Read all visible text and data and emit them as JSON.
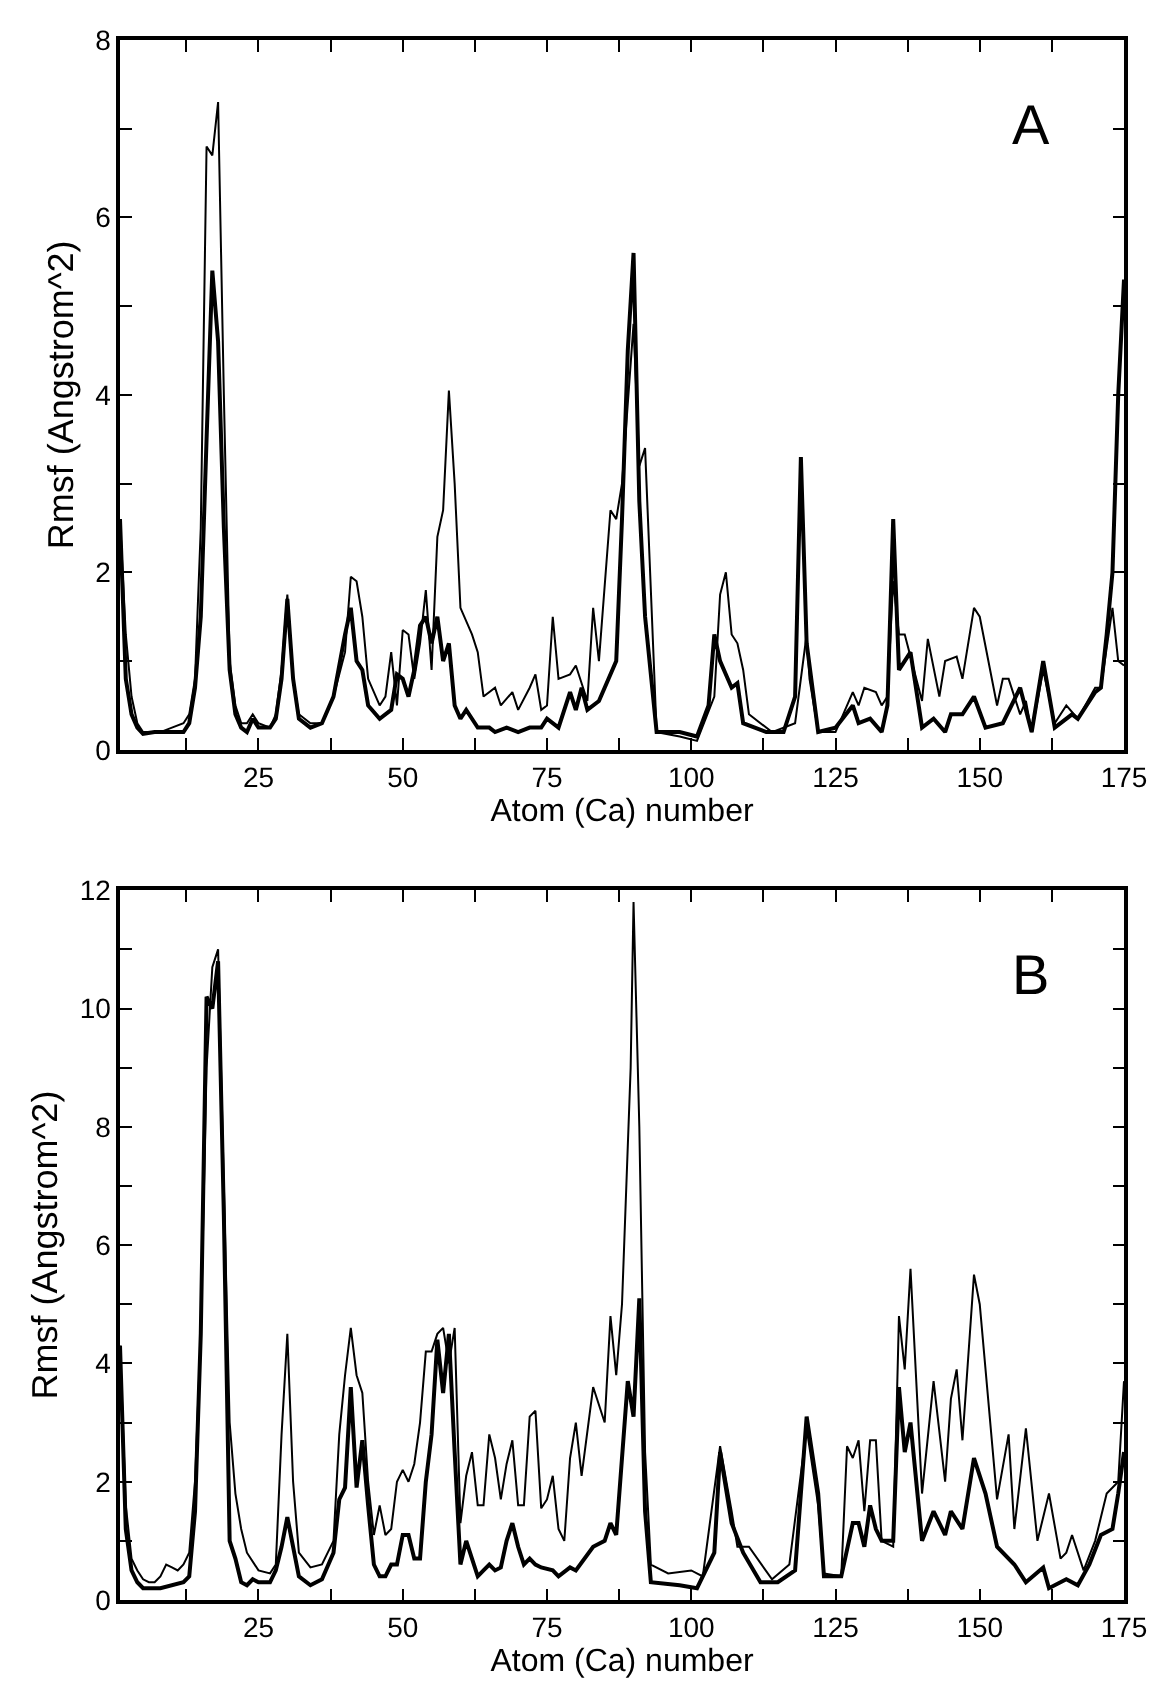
{
  "chart_data": [
    {
      "type": "line",
      "xlabel": "Atom (Ca) number",
      "ylabel": "Rmsf (Angstrom^2)",
      "annotations": [
        "A"
      ],
      "xlim": [
        1,
        175
      ],
      "xticks": [
        {
          "value": 12.5,
          "label": null
        },
        25,
        {
          "value": 37.5,
          "label": null
        },
        50,
        {
          "value": 62.5,
          "label": null
        },
        75,
        {
          "value": 87.5,
          "label": null
        },
        100,
        {
          "value": 112.5,
          "label": null
        },
        125,
        {
          "value": 137.5,
          "label": null
        },
        150,
        {
          "value": 162.5,
          "label": null
        },
        175
      ],
      "ylim": [
        0,
        8
      ],
      "yticks": [
        0,
        {
          "value": 1,
          "label": null
        },
        2,
        {
          "value": 3,
          "label": null
        },
        4,
        {
          "value": 5,
          "label": null
        },
        6,
        {
          "value": 7,
          "label": null
        },
        8
      ],
      "marker": "none",
      "line_style": "solid",
      "series": [
        {
          "color": "#000000",
          "x": [
            1,
            2,
            3,
            4,
            5,
            6,
            8,
            10,
            12,
            13,
            14,
            15,
            16,
            17,
            18,
            19,
            20,
            21,
            22,
            23,
            24,
            25,
            27,
            28,
            29,
            30,
            31,
            32,
            34,
            36,
            38,
            40,
            41,
            42,
            43,
            44,
            46,
            47,
            48,
            49,
            50,
            51,
            52,
            53,
            54,
            55,
            56,
            57,
            58,
            59,
            60,
            62,
            63,
            64,
            66,
            67,
            69,
            70,
            72,
            73,
            74,
            75,
            76,
            77,
            79,
            80,
            82,
            83,
            84,
            86,
            87,
            88,
            90,
            91,
            92,
            94,
            98,
            101,
            104,
            105,
            106,
            107,
            108,
            109,
            110,
            114,
            118,
            120,
            120.5,
            122,
            125,
            128,
            129,
            130,
            132,
            133,
            134,
            135,
            136,
            137,
            140,
            141,
            143,
            144,
            146,
            147,
            149,
            150,
            153,
            154,
            155,
            157,
            158,
            159,
            161,
            163,
            165,
            167,
            170,
            171,
            173,
            174,
            175
          ],
          "values": [
            2.6,
            1.3,
            0.6,
            0.3,
            0.2,
            0.2,
            0.2,
            0.25,
            0.3,
            0.4,
            0.8,
            2.5,
            6.8,
            6.7,
            7.3,
            4,
            1.0,
            0.5,
            0.3,
            0.3,
            0.4,
            0.3,
            0.25,
            0.4,
            0.9,
            1.75,
            0.8,
            0.4,
            0.3,
            0.3,
            0.6,
            1.1,
            1.95,
            1.9,
            1.5,
            0.8,
            0.5,
            0.6,
            1.1,
            0.5,
            1.35,
            1.3,
            0.8,
            1.2,
            1.8,
            0.9,
            2.4,
            2.7,
            4.05,
            3.0,
            1.6,
            1.3,
            1.1,
            0.6,
            0.7,
            0.5,
            0.65,
            0.45,
            0.7,
            0.85,
            0.45,
            0.5,
            1.5,
            0.8,
            0.85,
            0.95,
            0.55,
            1.6,
            1.0,
            2.7,
            2.6,
            3.0,
            4.8,
            3.2,
            3.4,
            0.2,
            0.15,
            0.1,
            0.6,
            1.75,
            2.0,
            1.3,
            1.2,
            0.9,
            0.4,
            0.2,
            0.3,
            1.3,
            0.8,
            0.2,
            0.2,
            0.65,
            0.5,
            0.7,
            0.65,
            0.5,
            0.6,
            1.9,
            1.3,
            1.3,
            0.55,
            1.25,
            0.6,
            1.0,
            1.05,
            0.8,
            1.6,
            1.5,
            0.5,
            0.8,
            0.8,
            0.4,
            0.55,
            0.2,
            0.9,
            0.3,
            0.5,
            0.35,
            0.7,
            0.7,
            1.6,
            1.0,
            0.95
          ]
        },
        {
          "color": "#000000",
          "x": [
            1,
            2,
            3,
            4,
            5,
            7,
            10,
            12,
            13,
            14,
            15,
            16,
            17,
            18,
            19,
            20,
            21,
            22,
            23,
            24,
            25,
            27,
            28,
            29,
            30,
            31,
            32,
            34,
            36,
            38,
            40,
            41,
            42,
            43,
            44,
            46,
            48,
            49,
            50,
            51,
            52,
            53,
            54,
            55,
            56,
            57,
            58,
            59,
            60,
            61,
            62,
            63,
            65,
            66,
            68,
            70,
            72,
            74,
            75,
            77,
            79,
            80,
            81,
            82,
            84,
            87,
            88,
            89,
            90,
            91,
            92,
            94,
            98,
            101,
            103,
            104,
            105,
            107,
            108,
            109,
            113,
            116,
            118,
            119,
            120,
            122,
            125,
            128,
            129,
            131,
            133,
            134,
            135,
            136,
            138,
            140,
            142,
            144,
            145,
            147,
            149,
            151,
            154,
            157,
            159,
            161,
            163,
            166,
            167,
            170,
            171,
            172,
            173,
            174,
            175
          ],
          "values": [
            2.6,
            0.8,
            0.4,
            0.25,
            0.18,
            0.2,
            0.2,
            0.2,
            0.3,
            0.7,
            1.5,
            3.5,
            5.4,
            4.6,
            2.5,
            0.9,
            0.4,
            0.25,
            0.2,
            0.35,
            0.25,
            0.25,
            0.35,
            0.8,
            1.7,
            0.8,
            0.35,
            0.25,
            0.3,
            0.6,
            1.3,
            1.6,
            1.0,
            0.9,
            0.5,
            0.35,
            0.45,
            0.85,
            0.8,
            0.6,
            0.9,
            1.4,
            1.5,
            1.2,
            1.5,
            1.0,
            1.2,
            0.5,
            0.35,
            0.45,
            0.35,
            0.25,
            0.25,
            0.2,
            0.25,
            0.2,
            0.25,
            0.25,
            0.35,
            0.25,
            0.65,
            0.45,
            0.7,
            0.45,
            0.55,
            1.0,
            2.6,
            4.5,
            5.6,
            2.8,
            1.5,
            0.2,
            0.2,
            0.15,
            0.5,
            1.3,
            1.0,
            0.7,
            0.75,
            0.3,
            0.2,
            0.2,
            0.6,
            3.3,
            1.2,
            0.2,
            0.25,
            0.5,
            0.3,
            0.35,
            0.2,
            0.5,
            2.6,
            0.9,
            1.1,
            0.25,
            0.35,
            0.2,
            0.4,
            0.4,
            0.6,
            0.25,
            0.3,
            0.7,
            0.2,
            1.0,
            0.25,
            0.4,
            0.35,
            0.65,
            0.7,
            1.3,
            2.0,
            4.0,
            5.3
          ]
        }
      ]
    },
    {
      "type": "line",
      "xlabel": "Atom (Ca) number",
      "ylabel": "Rmsf (Angstrom^2)",
      "annotations": [
        "B"
      ],
      "xlim": [
        1,
        175
      ],
      "xticks": [
        {
          "value": 12.5,
          "label": null
        },
        25,
        {
          "value": 37.5,
          "label": null
        },
        50,
        {
          "value": 62.5,
          "label": null
        },
        75,
        {
          "value": 87.5,
          "label": null
        },
        100,
        {
          "value": 112.5,
          "label": null
        },
        125,
        {
          "value": 137.5,
          "label": null
        },
        150,
        {
          "value": 162.5,
          "label": null
        },
        175
      ],
      "ylim": [
        0,
        12
      ],
      "yticks": [
        0,
        {
          "value": 1,
          "label": null
        },
        2,
        {
          "value": 3,
          "label": null
        },
        4,
        {
          "value": 5,
          "label": null
        },
        6,
        {
          "value": 7,
          "label": null
        },
        8,
        {
          "value": 9,
          "label": null
        },
        10,
        {
          "value": 11,
          "label": null
        },
        12
      ],
      "marker": "none",
      "line_style": "solid",
      "series": [
        {
          "color": "#000000",
          "x": [
            1,
            2,
            3,
            4,
            5,
            6,
            7,
            8,
            9,
            10,
            11,
            12,
            13,
            14,
            15,
            16,
            17,
            18,
            19,
            20,
            21,
            22,
            23,
            25,
            27,
            28,
            29,
            30,
            31,
            32,
            34,
            36,
            38,
            39,
            40,
            41,
            42,
            43,
            44,
            45,
            46,
            47,
            48,
            49,
            50,
            51,
            52,
            53,
            54,
            55,
            56,
            57,
            58,
            59,
            60,
            61,
            62,
            63,
            64,
            65,
            66,
            67,
            68,
            69,
            70,
            71,
            72,
            73,
            74,
            75,
            76,
            77,
            78,
            79,
            80,
            81,
            83,
            85,
            86,
            87,
            88,
            89.5,
            90,
            91,
            92,
            93,
            96,
            100,
            102,
            105,
            107,
            108,
            110,
            114,
            117,
            120,
            122,
            123,
            126,
            127,
            128,
            129,
            130,
            131,
            132,
            133,
            135,
            136,
            137,
            138,
            140,
            142,
            144,
            145,
            146,
            147,
            149,
            150,
            153,
            155,
            156,
            158,
            160,
            162,
            164,
            165,
            166,
            168,
            170,
            172,
            174,
            175
          ],
          "values": [
            4.3,
            1.6,
            0.7,
            0.5,
            0.35,
            0.3,
            0.3,
            0.4,
            0.6,
            0.55,
            0.5,
            0.6,
            0.8,
            2.0,
            4.5,
            9.0,
            10.7,
            11.0,
            7.0,
            3.0,
            1.8,
            1.2,
            0.8,
            0.5,
            0.45,
            0.6,
            2.8,
            4.5,
            2.0,
            0.8,
            0.55,
            0.6,
            1.0,
            2.8,
            3.8,
            4.6,
            3.8,
            3.5,
            2.0,
            1.1,
            1.6,
            1.1,
            1.2,
            2.0,
            2.2,
            2.0,
            2.3,
            3.0,
            4.2,
            4.2,
            4.5,
            4.6,
            4.0,
            4.6,
            1.3,
            2.1,
            2.5,
            1.6,
            1.6,
            2.8,
            2.4,
            1.7,
            2.3,
            2.7,
            1.6,
            1.6,
            3.1,
            3.2,
            1.55,
            1.7,
            2.1,
            1.2,
            1.0,
            2.4,
            3.0,
            2.1,
            3.6,
            3.0,
            4.8,
            3.8,
            5.0,
            9.0,
            11.8,
            8.0,
            2.5,
            0.6,
            0.45,
            0.5,
            0.4,
            2.6,
            1.5,
            0.9,
            0.9,
            0.35,
            0.6,
            2.9,
            1.6,
            0.45,
            0.4,
            2.6,
            2.4,
            2.7,
            1.5,
            2.7,
            2.7,
            1.0,
            0.9,
            4.8,
            3.9,
            5.6,
            1.8,
            3.7,
            2.0,
            3.4,
            3.9,
            2.7,
            5.5,
            5.0,
            1.7,
            2.8,
            1.2,
            2.9,
            1.0,
            1.8,
            0.7,
            0.8,
            1.1,
            0.5,
            1.0,
            1.8,
            2.0,
            3.7
          ]
        },
        {
          "color": "#000000",
          "x": [
            1,
            2,
            3,
            4,
            5,
            8,
            12,
            13,
            14,
            15,
            16,
            17,
            18,
            19,
            20,
            21,
            22,
            23,
            24,
            25,
            27,
            28,
            29,
            30,
            31,
            32,
            34,
            36,
            38,
            39,
            40,
            41,
            42,
            43,
            44,
            45,
            46,
            47,
            48,
            49,
            50,
            51,
            52,
            53,
            54,
            55,
            56,
            57,
            58,
            59,
            60,
            61,
            62,
            63,
            64,
            65,
            66,
            67,
            68,
            69,
            70,
            71,
            72,
            73,
            74,
            76,
            77,
            79,
            80,
            83,
            85,
            86,
            87,
            89,
            90,
            91,
            92,
            93,
            98,
            101,
            104,
            105,
            107,
            109,
            112,
            115,
            118,
            120,
            122,
            123,
            126,
            128,
            129,
            130,
            131,
            132,
            133,
            135,
            136,
            137,
            138,
            140,
            142,
            144,
            145,
            147,
            149,
            151,
            153,
            156,
            158,
            161,
            162,
            165,
            167,
            169,
            171,
            173,
            174,
            175
          ],
          "values": [
            4.3,
            1.2,
            0.5,
            0.3,
            0.2,
            0.2,
            0.3,
            0.4,
            1.5,
            4.5,
            10.2,
            10.0,
            10.8,
            6.5,
            1.0,
            0.7,
            0.3,
            0.25,
            0.35,
            0.3,
            0.3,
            0.5,
            0.9,
            1.4,
            0.9,
            0.4,
            0.25,
            0.35,
            0.8,
            1.7,
            1.9,
            3.6,
            1.9,
            2.7,
            1.6,
            0.6,
            0.4,
            0.4,
            0.6,
            0.6,
            1.1,
            1.1,
            0.7,
            0.7,
            2.0,
            2.8,
            4.4,
            3.5,
            4.5,
            2.5,
            0.6,
            1.0,
            0.7,
            0.4,
            0.5,
            0.6,
            0.5,
            0.55,
            1.0,
            1.3,
            0.9,
            0.6,
            0.7,
            0.6,
            0.55,
            0.5,
            0.4,
            0.55,
            0.5,
            0.9,
            1.0,
            1.3,
            1.1,
            3.7,
            3.1,
            5.1,
            1.5,
            0.3,
            0.25,
            0.2,
            0.8,
            2.5,
            1.3,
            0.8,
            0.3,
            0.3,
            0.5,
            3.1,
            1.8,
            0.4,
            0.4,
            1.3,
            1.3,
            0.9,
            1.6,
            1.2,
            1.0,
            1.0,
            3.6,
            2.5,
            3.0,
            1.0,
            1.5,
            1.1,
            1.5,
            1.2,
            2.4,
            1.8,
            0.9,
            0.6,
            0.3,
            0.55,
            0.2,
            0.35,
            0.25,
            0.6,
            1.1,
            1.2,
            1.8,
            2.5
          ]
        }
      ]
    }
  ]
}
